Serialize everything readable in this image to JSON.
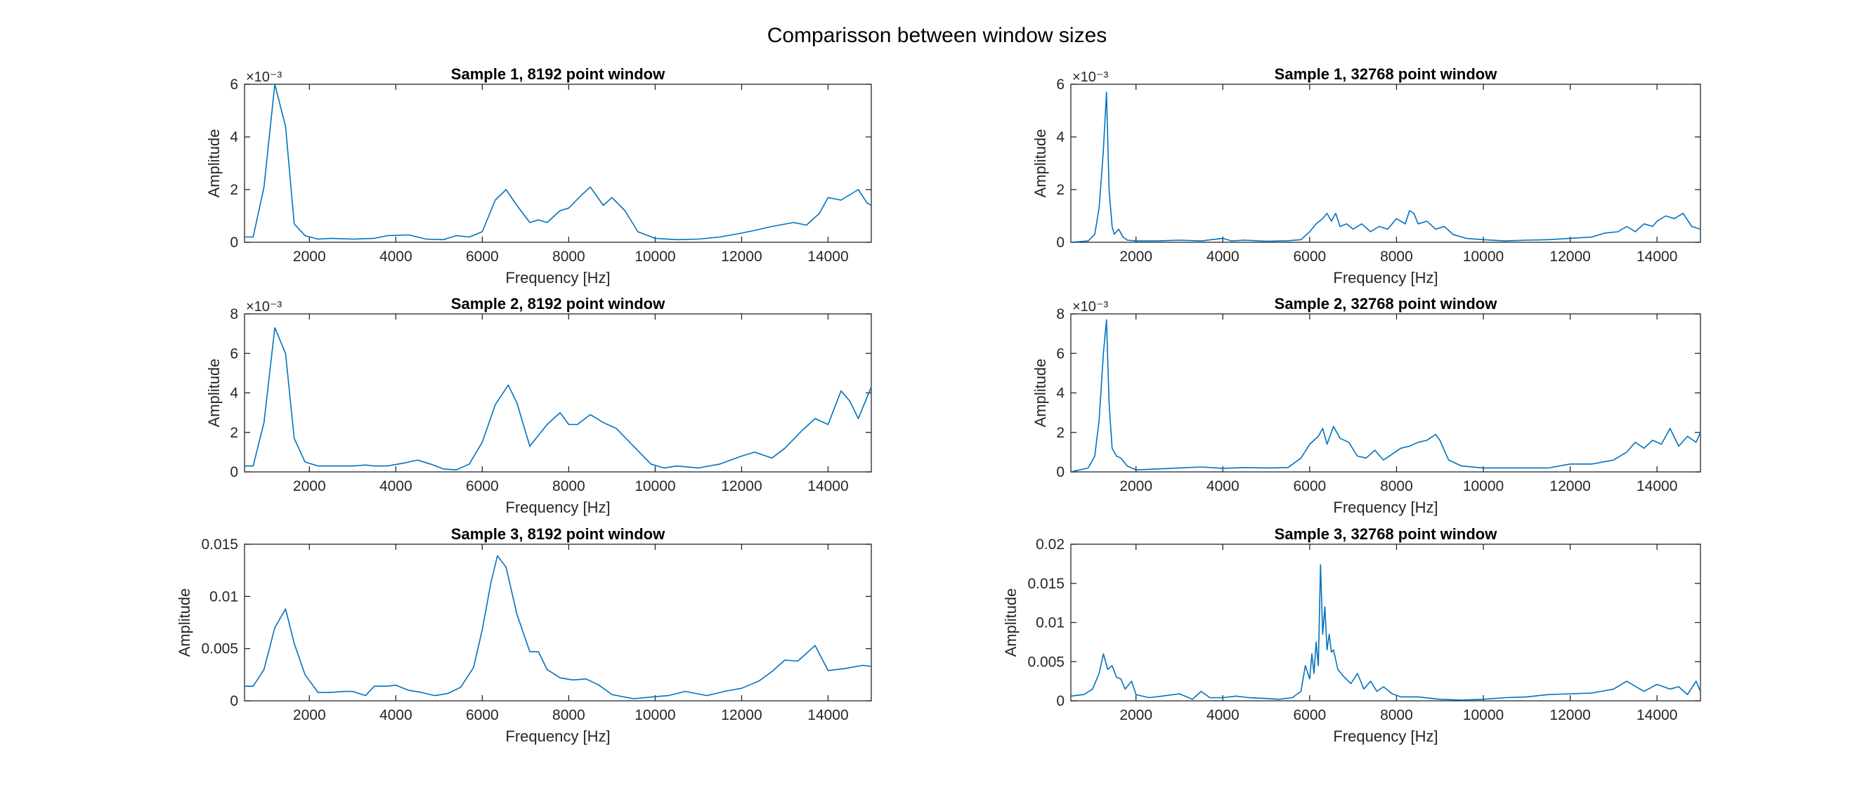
{
  "figure": {
    "title": "Comparisson between window sizes"
  },
  "chart_data": [
    {
      "type": "line",
      "title": "Sample 1, 8192 point window",
      "xlabel": "Frequency [Hz]",
      "ylabel": "Amplitude",
      "xlim": [
        500,
        15000
      ],
      "ylim": [
        0,
        0.006
      ],
      "xticks": [
        "2000",
        "4000",
        "6000",
        "8000",
        "10000",
        "12000",
        "14000"
      ],
      "yticks": [
        "0",
        "2",
        "4",
        "6"
      ],
      "ytick_values": [
        0,
        0.002,
        0.004,
        0.006
      ],
      "exponent_label": "×10⁻³",
      "series": [
        {
          "x": [
            500,
            700,
            950,
            1200,
            1450,
            1650,
            1900,
            2200,
            2500,
            3000,
            3500,
            3800,
            4300,
            4700,
            5100,
            5400,
            5700,
            6000,
            6300,
            6550,
            6800,
            7100,
            7300,
            7500,
            7800,
            8000,
            8300,
            8500,
            8800,
            9000,
            9300,
            9600,
            10000,
            10500,
            11000,
            11500,
            12000,
            12300,
            12700,
            13200,
            13500,
            13800,
            14000,
            14300,
            14700,
            14900,
            15000
          ],
          "y": [
            0.0002,
            0.0002,
            0.0021,
            0.006,
            0.0044,
            0.0007,
            0.00025,
            0.00012,
            0.00015,
            0.00012,
            0.00015,
            0.00025,
            0.00028,
            0.00012,
            0.0001,
            0.00025,
            0.0002,
            0.0004,
            0.0016,
            0.002,
            0.0014,
            0.00075,
            0.00085,
            0.00075,
            0.0012,
            0.0013,
            0.0018,
            0.0021,
            0.0014,
            0.0017,
            0.0012,
            0.0004,
            0.00015,
            0.0001,
            0.00012,
            0.0002,
            0.00035,
            0.00045,
            0.0006,
            0.00075,
            0.00065,
            0.0011,
            0.0017,
            0.0016,
            0.002,
            0.0015,
            0.0014
          ]
        }
      ]
    },
    {
      "type": "line",
      "title": "Sample 1, 32768 point window",
      "xlabel": "Frequency [Hz]",
      "ylabel": "Amplitude",
      "xlim": [
        500,
        15000
      ],
      "ylim": [
        0,
        0.006
      ],
      "xticks": [
        "2000",
        "4000",
        "6000",
        "8000",
        "10000",
        "12000",
        "14000"
      ],
      "yticks": [
        "0",
        "2",
        "4",
        "6"
      ],
      "ytick_values": [
        0,
        0.002,
        0.004,
        0.006
      ],
      "exponent_label": "×10⁻³",
      "series": [
        {
          "x": [
            500,
            900,
            1050,
            1150,
            1250,
            1320,
            1380,
            1450,
            1500,
            1600,
            1700,
            1800,
            2000,
            2500,
            3000,
            3500,
            4000,
            4200,
            4500,
            5000,
            5500,
            5800,
            6000,
            6150,
            6300,
            6400,
            6500,
            6600,
            6700,
            6850,
            7000,
            7200,
            7400,
            7600,
            7800,
            8000,
            8200,
            8300,
            8400,
            8500,
            8700,
            8900,
            9100,
            9300,
            9600,
            10000,
            10500,
            11000,
            11500,
            12000,
            12500,
            12800,
            13100,
            13300,
            13500,
            13700,
            13900,
            14000,
            14200,
            14400,
            14600,
            14800,
            15000
          ],
          "y": [
            0,
            5e-05,
            0.0003,
            0.0013,
            0.0035,
            0.0057,
            0.002,
            0.0006,
            0.0003,
            0.0005,
            0.0002,
            8e-05,
            5e-05,
            5e-05,
            8e-05,
            5e-05,
            0.00015,
            5e-05,
            8e-05,
            4e-05,
            6e-05,
            0.0001,
            0.0004,
            0.0007,
            0.0009,
            0.0011,
            0.0008,
            0.0011,
            0.0006,
            0.0007,
            0.0005,
            0.0007,
            0.0004,
            0.0006,
            0.0005,
            0.0009,
            0.0007,
            0.0012,
            0.0011,
            0.0007,
            0.0008,
            0.0005,
            0.0006,
            0.0003,
            0.00015,
            0.0001,
            5e-05,
            8e-05,
            0.0001,
            0.00015,
            0.0002,
            0.00035,
            0.0004,
            0.0006,
            0.0004,
            0.0007,
            0.0006,
            0.0008,
            0.001,
            0.0009,
            0.0011,
            0.0006,
            0.0005
          ]
        }
      ]
    },
    {
      "type": "line",
      "title": "Sample 2, 8192 point window",
      "xlabel": "Frequency [Hz]",
      "ylabel": "Amplitude",
      "xlim": [
        500,
        15000
      ],
      "ylim": [
        0,
        0.008
      ],
      "xticks": [
        "2000",
        "4000",
        "6000",
        "8000",
        "10000",
        "12000",
        "14000"
      ],
      "yticks": [
        "0",
        "2",
        "4",
        "6",
        "8"
      ],
      "ytick_values": [
        0,
        0.002,
        0.004,
        0.006,
        0.008
      ],
      "exponent_label": "×10⁻³",
      "series": [
        {
          "x": [
            500,
            700,
            950,
            1200,
            1450,
            1650,
            1900,
            2200,
            2500,
            3000,
            3300,
            3500,
            3800,
            4200,
            4500,
            4800,
            5100,
            5400,
            5700,
            6000,
            6300,
            6600,
            6800,
            7100,
            7500,
            7800,
            8000,
            8200,
            8500,
            8800,
            9100,
            9500,
            9900,
            10200,
            10500,
            11000,
            11500,
            12000,
            12300,
            12700,
            13000,
            13400,
            13700,
            14000,
            14300,
            14500,
            14700,
            15000
          ],
          "y": [
            0.0003,
            0.0003,
            0.0025,
            0.0073,
            0.006,
            0.0017,
            0.0005,
            0.0003,
            0.0003,
            0.0003,
            0.00035,
            0.0003,
            0.0003,
            0.00045,
            0.0006,
            0.0004,
            0.00015,
            0.0001,
            0.0004,
            0.0015,
            0.0034,
            0.0044,
            0.0035,
            0.0013,
            0.0024,
            0.003,
            0.0024,
            0.0024,
            0.0029,
            0.0025,
            0.0022,
            0.0013,
            0.0004,
            0.0002,
            0.0003,
            0.0002,
            0.0004,
            0.0008,
            0.001,
            0.0007,
            0.0012,
            0.0021,
            0.0027,
            0.0024,
            0.0041,
            0.0036,
            0.0027,
            0.0043
          ]
        }
      ]
    },
    {
      "type": "line",
      "title": "Sample 2, 32768 point window",
      "xlabel": "Frequency [Hz]",
      "ylabel": "Amplitude",
      "xlim": [
        500,
        15000
      ],
      "ylim": [
        0,
        0.008
      ],
      "xticks": [
        "2000",
        "4000",
        "6000",
        "8000",
        "10000",
        "12000",
        "14000"
      ],
      "yticks": [
        "0",
        "2",
        "4",
        "6",
        "8"
      ],
      "ytick_values": [
        0,
        0.002,
        0.004,
        0.006,
        0.008
      ],
      "exponent_label": "×10⁻³",
      "series": [
        {
          "x": [
            500,
            900,
            1050,
            1150,
            1250,
            1320,
            1380,
            1450,
            1550,
            1650,
            1800,
            2000,
            2500,
            3000,
            3500,
            4000,
            4500,
            5000,
            5500,
            5800,
            6000,
            6200,
            6300,
            6400,
            6550,
            6700,
            6900,
            7100,
            7300,
            7500,
            7700,
            7900,
            8100,
            8300,
            8500,
            8700,
            8900,
            9000,
            9200,
            9500,
            10000,
            10500,
            11000,
            11500,
            12000,
            12500,
            13000,
            13300,
            13500,
            13700,
            13900,
            14100,
            14300,
            14500,
            14700,
            14900,
            15000
          ],
          "y": [
            0,
            0.0002,
            0.0008,
            0.0026,
            0.006,
            0.0077,
            0.0035,
            0.0012,
            0.0008,
            0.0007,
            0.0003,
            0.0001,
            0.00015,
            0.0002,
            0.00025,
            0.00018,
            0.00022,
            0.0002,
            0.00022,
            0.0007,
            0.0014,
            0.0018,
            0.0022,
            0.0014,
            0.0023,
            0.0017,
            0.0015,
            0.0008,
            0.0007,
            0.0011,
            0.0006,
            0.0009,
            0.0012,
            0.0013,
            0.0015,
            0.0016,
            0.0019,
            0.0016,
            0.0006,
            0.0003,
            0.0002,
            0.0002,
            0.0002,
            0.0002,
            0.0004,
            0.0004,
            0.0006,
            0.001,
            0.0015,
            0.0012,
            0.0016,
            0.0014,
            0.0022,
            0.0013,
            0.0018,
            0.0015,
            0.002
          ]
        }
      ]
    },
    {
      "type": "line",
      "title": "Sample 3, 8192 point window",
      "xlabel": "Frequency [Hz]",
      "ylabel": "Amplitude",
      "xlim": [
        500,
        15000
      ],
      "ylim": [
        0,
        0.015
      ],
      "xticks": [
        "2000",
        "4000",
        "6000",
        "8000",
        "10000",
        "12000",
        "14000"
      ],
      "yticks": [
        "0",
        "0.005",
        "0.01",
        "0.015"
      ],
      "ytick_values": [
        0,
        0.005,
        0.01,
        0.015
      ],
      "exponent_label": "",
      "series": [
        {
          "x": [
            500,
            700,
            950,
            1200,
            1450,
            1650,
            1900,
            2200,
            2500,
            2800,
            3000,
            3300,
            3500,
            3800,
            4000,
            4300,
            4600,
            4900,
            5200,
            5500,
            5800,
            6000,
            6200,
            6350,
            6550,
            6800,
            7100,
            7300,
            7500,
            7800,
            8100,
            8400,
            8700,
            9000,
            9500,
            10000,
            10300,
            10700,
            11200,
            11600,
            12000,
            12400,
            12700,
            13000,
            13300,
            13700,
            14000,
            14400,
            14800,
            15000
          ],
          "y": [
            0.0014,
            0.0014,
            0.003,
            0.007,
            0.0088,
            0.0055,
            0.0025,
            0.0008,
            0.0008,
            0.0009,
            0.0009,
            0.0005,
            0.0014,
            0.0014,
            0.0015,
            0.001,
            0.0008,
            0.0005,
            0.0007,
            0.0013,
            0.0032,
            0.0068,
            0.0113,
            0.0139,
            0.0128,
            0.0083,
            0.0047,
            0.0047,
            0.003,
            0.0022,
            0.002,
            0.0021,
            0.0015,
            0.0006,
            0.0002,
            0.0004,
            0.0005,
            0.0009,
            0.0005,
            0.0009,
            0.0012,
            0.0019,
            0.0028,
            0.0039,
            0.0038,
            0.0053,
            0.0029,
            0.0031,
            0.0034,
            0.0033
          ]
        }
      ]
    },
    {
      "type": "line",
      "title": "Sample 3, 32768 point window",
      "xlabel": "Frequency [Hz]",
      "ylabel": "Amplitude",
      "xlim": [
        500,
        15000
      ],
      "ylim": [
        0,
        0.02
      ],
      "xticks": [
        "2000",
        "4000",
        "6000",
        "8000",
        "10000",
        "12000",
        "14000"
      ],
      "yticks": [
        "0",
        "0.005",
        "0.01",
        "0.015",
        "0.02"
      ],
      "ytick_values": [
        0,
        0.005,
        0.01,
        0.015,
        0.02
      ],
      "exponent_label": "",
      "series": [
        {
          "x": [
            500,
            800,
            1000,
            1150,
            1250,
            1350,
            1450,
            1550,
            1650,
            1750,
            1900,
            2000,
            2300,
            2600,
            3000,
            3300,
            3500,
            3700,
            4000,
            4300,
            4600,
            5000,
            5300,
            5600,
            5800,
            5900,
            6000,
            6050,
            6100,
            6150,
            6200,
            6250,
            6300,
            6350,
            6400,
            6450,
            6500,
            6550,
            6650,
            6800,
            6950,
            7100,
            7250,
            7400,
            7550,
            7700,
            7900,
            8100,
            8500,
            9000,
            9500,
            10000,
            10500,
            11000,
            11500,
            12000,
            12500,
            13000,
            13300,
            13700,
            14000,
            14300,
            14500,
            14700,
            14900,
            15000
          ],
          "y": [
            0.0006,
            0.0008,
            0.0015,
            0.0035,
            0.006,
            0.004,
            0.0045,
            0.003,
            0.0028,
            0.0015,
            0.0025,
            0.0008,
            0.0004,
            0.0006,
            0.0009,
            0.0002,
            0.0012,
            0.0004,
            0.0004,
            0.0006,
            0.0004,
            0.0003,
            0.0002,
            0.0004,
            0.0012,
            0.0045,
            0.0028,
            0.006,
            0.0035,
            0.0075,
            0.0045,
            0.0174,
            0.0085,
            0.012,
            0.0065,
            0.0085,
            0.0062,
            0.0065,
            0.004,
            0.003,
            0.0022,
            0.0035,
            0.0015,
            0.0025,
            0.0012,
            0.0018,
            0.0009,
            0.0005,
            0.0005,
            0.0002,
            0.0001,
            0.0002,
            0.0004,
            0.0005,
            0.0008,
            0.0009,
            0.001,
            0.0015,
            0.0025,
            0.0012,
            0.0021,
            0.0015,
            0.0018,
            0.0008,
            0.0025,
            0.0012
          ]
        }
      ]
    }
  ]
}
